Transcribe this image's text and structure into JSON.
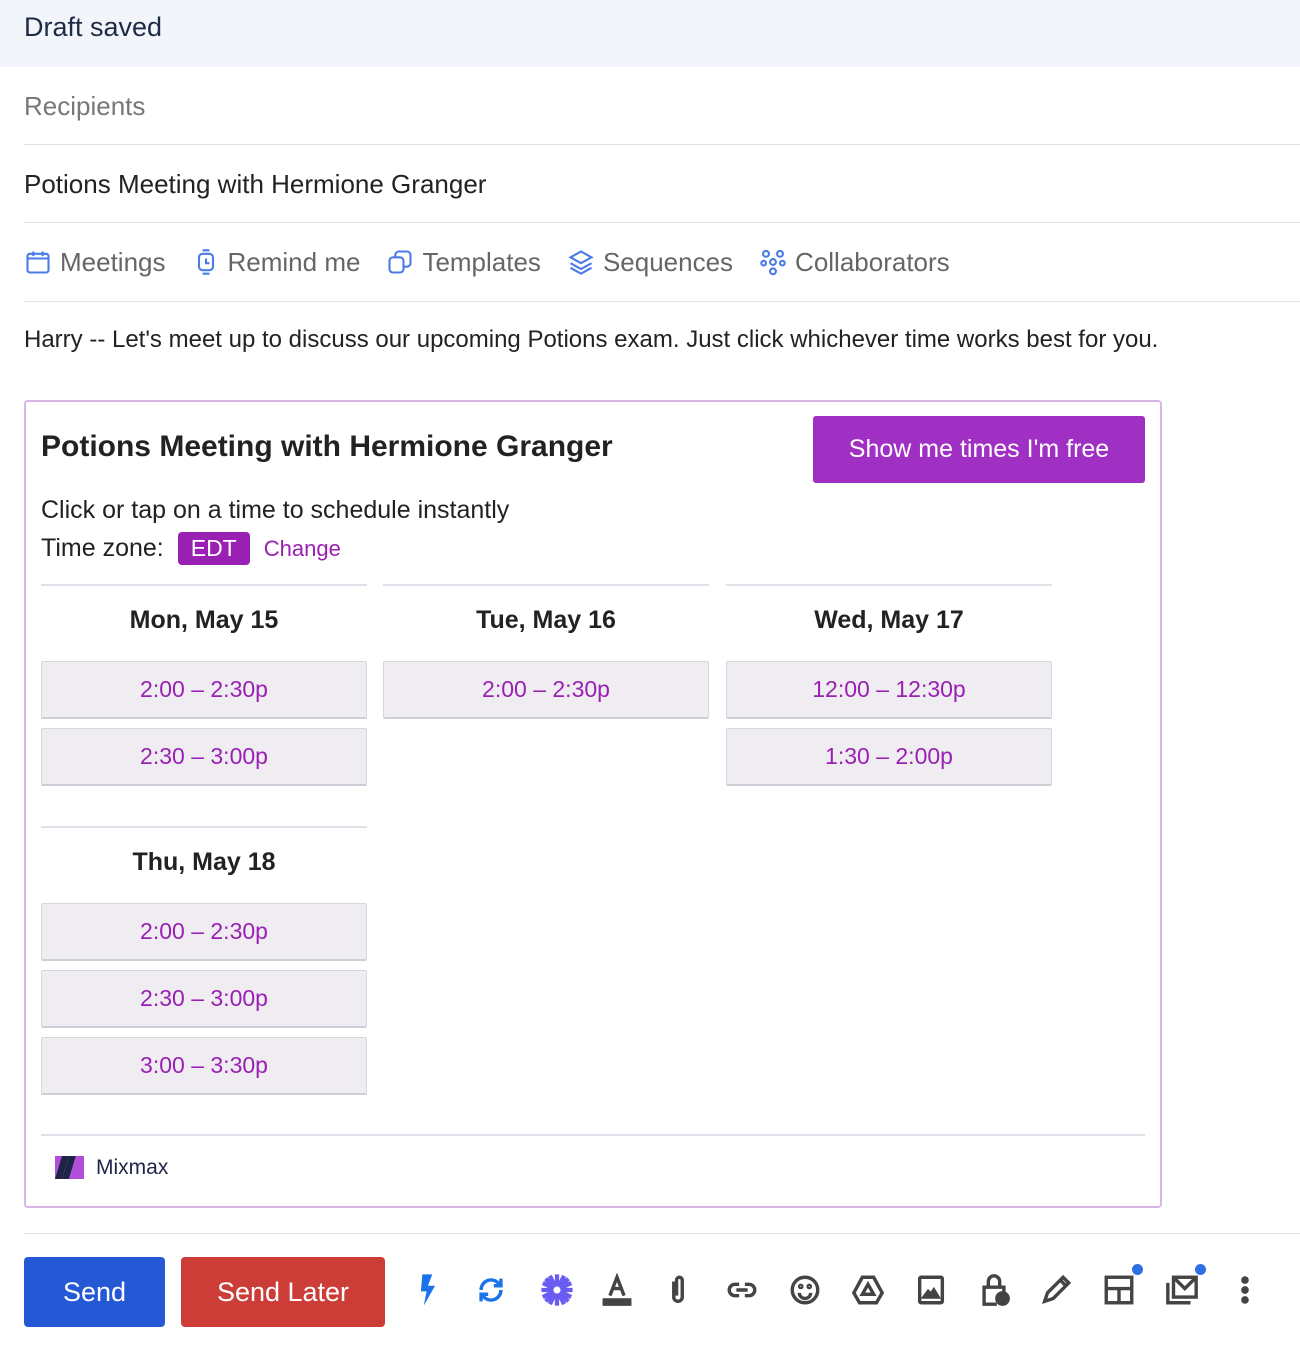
{
  "header": {
    "status": "Draft saved"
  },
  "compose": {
    "recipients_placeholder": "Recipients",
    "subject": "Potions Meeting with Hermione Granger",
    "toolbar": [
      {
        "label": "Meetings",
        "icon": "calendar-icon"
      },
      {
        "label": "Remind me",
        "icon": "watch-icon"
      },
      {
        "label": "Templates",
        "icon": "templates-icon"
      },
      {
        "label": "Sequences",
        "icon": "layers-icon"
      },
      {
        "label": "Collaborators",
        "icon": "collaborators-icon"
      }
    ],
    "body": "Harry -- Let's meet up to discuss our upcoming Potions exam. Just click whichever time works best for you."
  },
  "card": {
    "title": "Potions Meeting with Hermione Granger",
    "show_button": "Show me times I'm free",
    "subtitle": "Click or tap on a time to schedule instantly",
    "tz_label": "Time zone:",
    "tz": "EDT",
    "change": "Change",
    "days": [
      {
        "date": "Mon, May 15",
        "slots": [
          "2:00 – 2:30p",
          "2:30 – 3:00p"
        ]
      },
      {
        "date": "Tue, May 16",
        "slots": [
          "2:00 – 2:30p"
        ]
      },
      {
        "date": "Wed, May 17",
        "slots": [
          "12:00 – 12:30p",
          "1:30 – 2:00p"
        ]
      },
      {
        "date": "Thu, May 18",
        "slots": [
          "2:00 – 2:30p",
          "2:30 – 3:00p",
          "3:00 – 3:30p"
        ]
      }
    ],
    "brand": "Mixmax",
    "accent": "#9a1fb3"
  },
  "bottom": {
    "send": "Send",
    "send_later": "Send Later",
    "icons": [
      "lightning-icon",
      "sync-icon",
      "asterisk-icon",
      "text-format-icon",
      "attach-icon",
      "link-icon",
      "emoji-icon",
      "drive-icon",
      "image-icon",
      "confidential-lock-icon",
      "signature-pen-icon",
      "layout-icon",
      "mail-stack-icon",
      "more-vert-icon"
    ]
  }
}
